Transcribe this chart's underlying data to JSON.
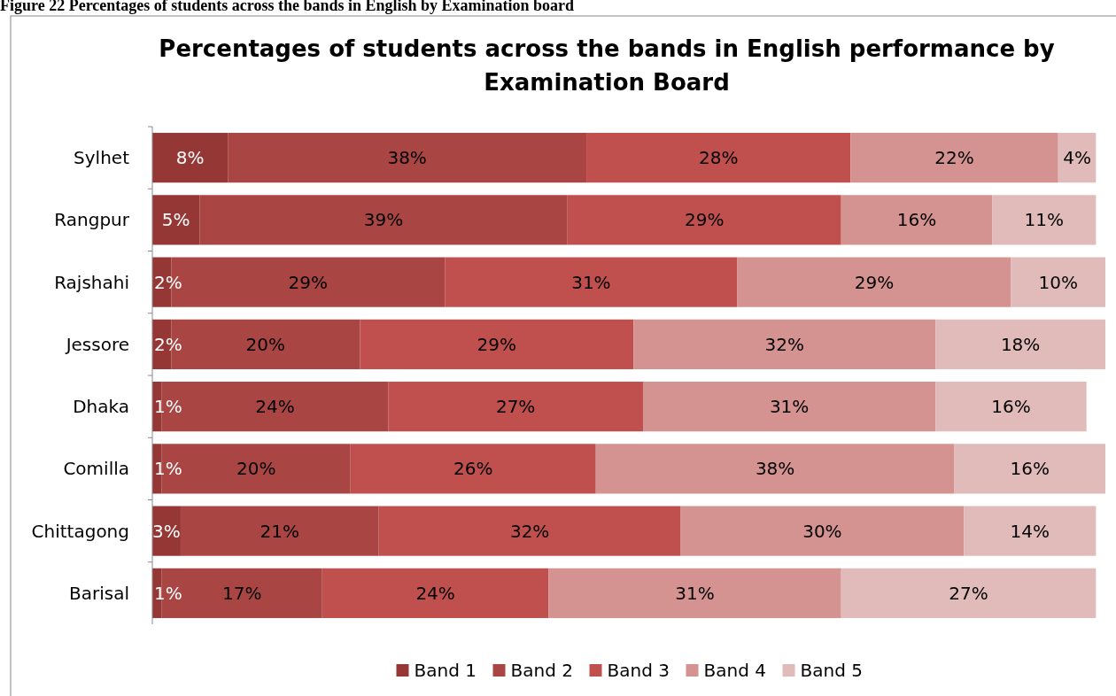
{
  "chart_data": {
    "type": "bar",
    "orientation": "horizontal",
    "stacked": true,
    "title": "Percentages of students across the bands in English performance by Examination Board",
    "annotations": [
      "Figure 22 Percentages of students across the bands in English by Examination board"
    ],
    "categories": [
      "Sylhet",
      "Rangpur",
      "Rajshahi",
      "Jessore",
      "Dhaka",
      "Comilla",
      "Chittagong",
      "Barisal"
    ],
    "legend": "bottom",
    "series": [
      {
        "name": "Band 1",
        "color": "#953735",
        "values": [
          8,
          5,
          2,
          2,
          1,
          1,
          3,
          1
        ],
        "value_labels": [
          "8%",
          "5%",
          "2%",
          "2%",
          "1%",
          "1%",
          "3%",
          "1%"
        ]
      },
      {
        "name": "Band 2",
        "color": "#a94644",
        "values": [
          38,
          39,
          29,
          20,
          24,
          20,
          21,
          17
        ],
        "value_labels": [
          "38%",
          "39%",
          "29%",
          "20%",
          "24%",
          "20%",
          "21%",
          "17%"
        ]
      },
      {
        "name": "Band 3",
        "color": "#c0504d",
        "values": [
          28,
          29,
          31,
          29,
          27,
          26,
          32,
          24
        ],
        "value_labels": [
          "28%",
          "29%",
          "31%",
          "29%",
          "27%",
          "26%",
          "32%",
          "24%"
        ]
      },
      {
        "name": "Band 4",
        "color": "#d49290",
        "values": [
          22,
          16,
          29,
          32,
          31,
          38,
          30,
          31
        ],
        "value_labels": [
          "22%",
          "16%",
          "29%",
          "32%",
          "31%",
          "38%",
          "30%",
          "31%"
        ]
      },
      {
        "name": "Band 5",
        "color": "#e0bbba",
        "values": [
          4,
          11,
          10,
          18,
          16,
          16,
          14,
          27
        ],
        "value_labels": [
          "4%",
          "11%",
          "10%",
          "18%",
          "16%",
          "16%",
          "14%",
          "27%"
        ]
      }
    ]
  }
}
